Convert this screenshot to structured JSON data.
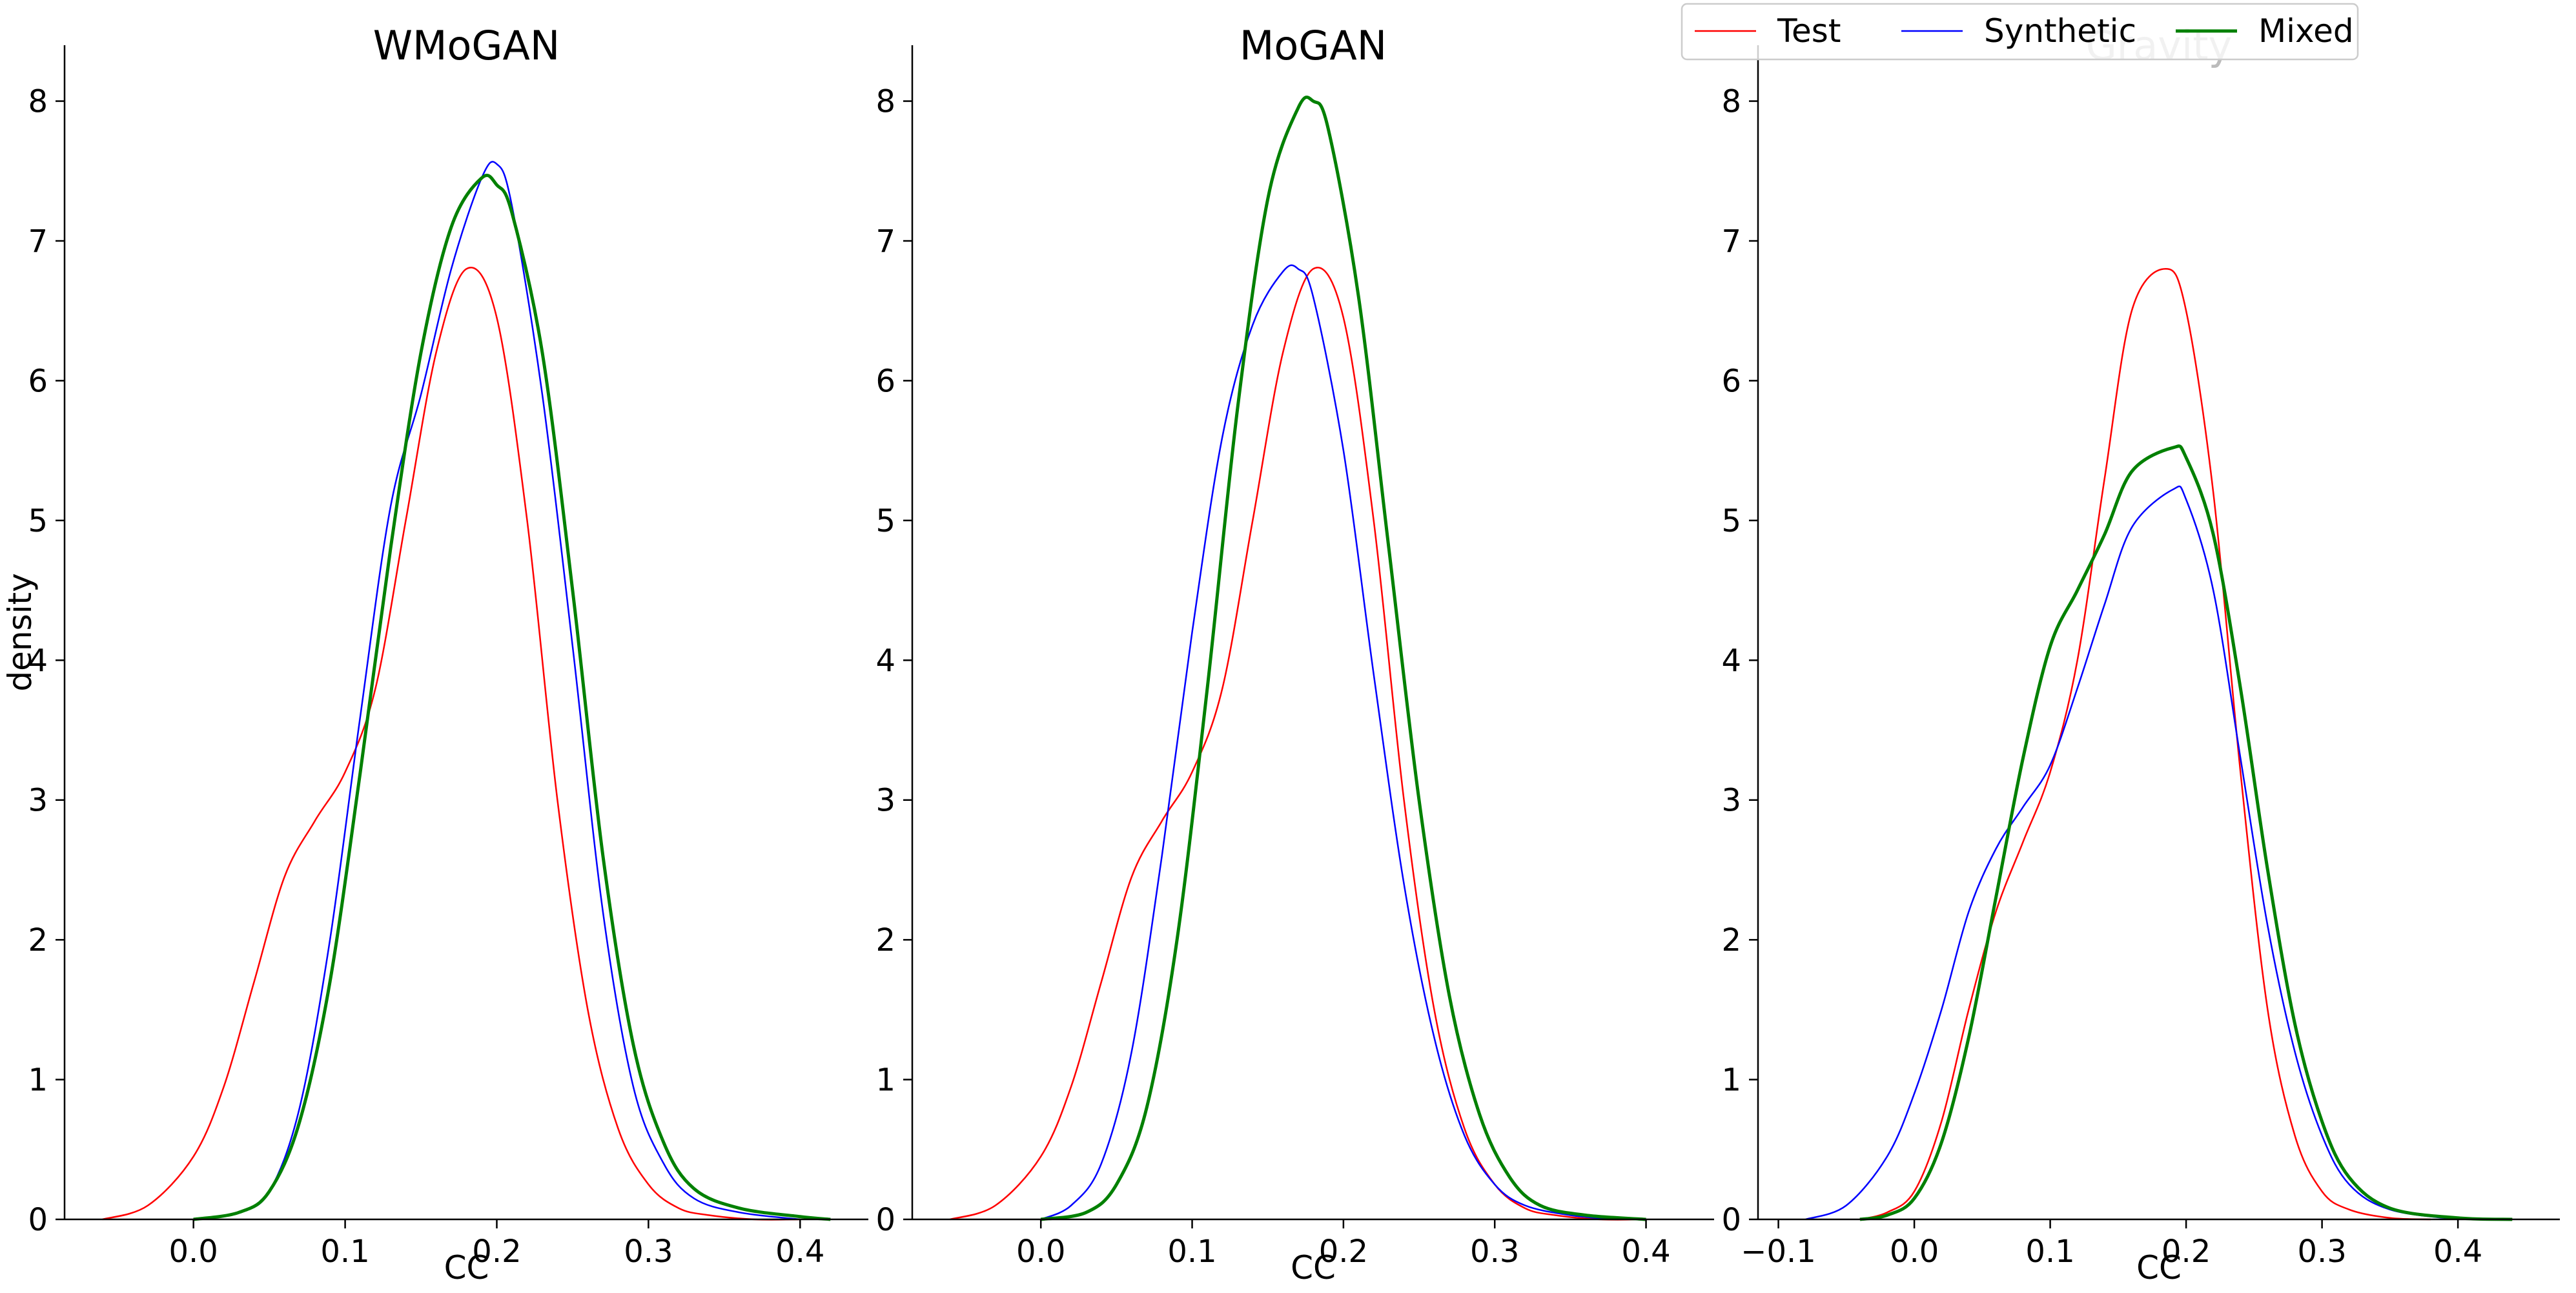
{
  "colors": {
    "test": "#ff0000",
    "synthetic": "#0000ff",
    "mixed": "#008000",
    "axis": "#000000",
    "legend_border": "#cccccc",
    "faded_title": "#bbbbbb"
  },
  "legend": {
    "placement": "top-right",
    "items": [
      {
        "name": "Test",
        "color": "#ff0000",
        "style": "thin"
      },
      {
        "name": "Synthetic",
        "color": "#0000ff",
        "style": "thin"
      },
      {
        "name": "Mixed",
        "color": "#008000",
        "style": "thick"
      }
    ]
  },
  "chart_data": [
    {
      "type": "line",
      "title": "WMoGAN",
      "xlabel": "CC",
      "ylabel": "density",
      "xlim": [
        -0.085,
        0.445
      ],
      "ylim": [
        0,
        8.4
      ],
      "xticks": [
        0.0,
        0.1,
        0.2,
        0.3,
        0.4
      ],
      "xtick_labels": [
        "0.0",
        "0.1",
        "0.2",
        "0.3",
        "0.4"
      ],
      "yticks": [
        0,
        1,
        2,
        3,
        4,
        5,
        6,
        7,
        8
      ],
      "ytick_labels": [
        "0",
        "1",
        "2",
        "3",
        "4",
        "5",
        "6",
        "7",
        "8"
      ],
      "grid": false,
      "series": [
        {
          "name": "Test",
          "x": [
            -0.06,
            -0.03,
            0.0,
            0.02,
            0.04,
            0.06,
            0.08,
            0.1,
            0.12,
            0.14,
            0.16,
            0.18,
            0.2,
            0.22,
            0.24,
            0.26,
            0.28,
            0.3,
            0.32,
            0.34,
            0.37,
            0.4
          ],
          "values": [
            0.0,
            0.1,
            0.45,
            0.95,
            1.7,
            2.45,
            2.85,
            3.2,
            3.8,
            5.0,
            6.2,
            6.8,
            6.45,
            5.0,
            3.0,
            1.5,
            0.65,
            0.25,
            0.08,
            0.03,
            0.0,
            0.0
          ]
        },
        {
          "name": "Synthetic",
          "x": [
            0.0,
            0.03,
            0.05,
            0.07,
            0.09,
            0.11,
            0.13,
            0.15,
            0.17,
            0.19,
            0.2,
            0.21,
            0.23,
            0.25,
            0.27,
            0.29,
            0.31,
            0.33,
            0.36,
            0.4
          ],
          "values": [
            0.0,
            0.05,
            0.2,
            0.8,
            2.0,
            3.6,
            5.1,
            5.9,
            6.8,
            7.45,
            7.55,
            7.25,
            5.9,
            4.1,
            2.2,
            0.95,
            0.4,
            0.15,
            0.05,
            0.0
          ]
        },
        {
          "name": "Mixed",
          "x": [
            0.0,
            0.03,
            0.05,
            0.07,
            0.09,
            0.11,
            0.13,
            0.15,
            0.17,
            0.19,
            0.2,
            0.21,
            0.23,
            0.25,
            0.27,
            0.29,
            0.31,
            0.33,
            0.36,
            0.4,
            0.42
          ],
          "values": [
            0.0,
            0.05,
            0.2,
            0.7,
            1.7,
            3.2,
            4.8,
            6.2,
            7.1,
            7.45,
            7.4,
            7.2,
            6.2,
            4.5,
            2.6,
            1.25,
            0.55,
            0.22,
            0.08,
            0.02,
            0.0
          ]
        }
      ]
    },
    {
      "type": "line",
      "title": "MoGAN",
      "xlabel": "CC",
      "ylabel": "",
      "xlim": [
        -0.085,
        0.445
      ],
      "ylim": [
        0,
        8.4
      ],
      "xticks": [
        0.0,
        0.1,
        0.2,
        0.3,
        0.4
      ],
      "xtick_labels": [
        "0.0",
        "0.1",
        "0.2",
        "0.3",
        "0.4"
      ],
      "yticks": [
        0,
        1,
        2,
        3,
        4,
        5,
        6,
        7,
        8
      ],
      "ytick_labels": [
        "0",
        "1",
        "2",
        "3",
        "4",
        "5",
        "6",
        "7",
        "8"
      ],
      "grid": false,
      "series": [
        {
          "name": "Test",
          "x": [
            -0.06,
            -0.03,
            0.0,
            0.02,
            0.04,
            0.06,
            0.08,
            0.1,
            0.12,
            0.14,
            0.16,
            0.18,
            0.2,
            0.22,
            0.24,
            0.26,
            0.28,
            0.3,
            0.32,
            0.34,
            0.37,
            0.4
          ],
          "values": [
            0.0,
            0.1,
            0.45,
            0.95,
            1.7,
            2.45,
            2.85,
            3.2,
            3.8,
            5.0,
            6.2,
            6.8,
            6.45,
            5.0,
            3.0,
            1.5,
            0.65,
            0.25,
            0.08,
            0.03,
            0.0,
            0.0
          ]
        },
        {
          "name": "Synthetic",
          "x": [
            0.0,
            0.02,
            0.04,
            0.06,
            0.08,
            0.1,
            0.12,
            0.14,
            0.16,
            0.17,
            0.18,
            0.2,
            0.22,
            0.24,
            0.26,
            0.28,
            0.3,
            0.32,
            0.35,
            0.38
          ],
          "values": [
            0.0,
            0.1,
            0.4,
            1.2,
            2.6,
            4.2,
            5.6,
            6.4,
            6.78,
            6.8,
            6.6,
            5.5,
            3.9,
            2.4,
            1.3,
            0.6,
            0.25,
            0.1,
            0.03,
            0.0
          ]
        },
        {
          "name": "Mixed",
          "x": [
            0.0,
            0.03,
            0.05,
            0.07,
            0.09,
            0.11,
            0.13,
            0.15,
            0.17,
            0.18,
            0.19,
            0.21,
            0.23,
            0.25,
            0.27,
            0.29,
            0.31,
            0.33,
            0.36,
            0.4
          ],
          "values": [
            0.0,
            0.05,
            0.25,
            0.8,
            2.0,
            3.8,
            5.8,
            7.3,
            7.95,
            8.0,
            7.8,
            6.6,
            4.8,
            3.0,
            1.6,
            0.75,
            0.3,
            0.1,
            0.03,
            0.0
          ]
        }
      ]
    },
    {
      "type": "line",
      "title": "Gravity",
      "xlabel": "CC",
      "ylabel": "",
      "xlim": [
        -0.115,
        0.475
      ],
      "ylim": [
        0,
        8.4
      ],
      "xticks": [
        -0.1,
        0.0,
        0.1,
        0.2,
        0.3,
        0.4
      ],
      "xtick_labels": [
        "−0.1",
        "0.0",
        "0.1",
        "0.2",
        "0.3",
        "0.4"
      ],
      "yticks": [
        0,
        1,
        2,
        3,
        4,
        5,
        6,
        7,
        8
      ],
      "ytick_labels": [
        "0",
        "1",
        "2",
        "3",
        "4",
        "5",
        "6",
        "7",
        "8"
      ],
      "grid": false,
      "series": [
        {
          "name": "Test",
          "x": [
            -0.04,
            -0.02,
            0.0,
            0.02,
            0.04,
            0.06,
            0.08,
            0.1,
            0.12,
            0.14,
            0.16,
            0.185,
            0.2,
            0.22,
            0.24,
            0.26,
            0.28,
            0.3,
            0.32,
            0.35,
            0.38
          ],
          "values": [
            0.0,
            0.05,
            0.2,
            0.7,
            1.5,
            2.2,
            2.7,
            3.2,
            4.0,
            5.3,
            6.5,
            6.8,
            6.5,
            5.2,
            3.2,
            1.5,
            0.6,
            0.2,
            0.07,
            0.01,
            0.0
          ]
        },
        {
          "name": "Synthetic",
          "x": [
            -0.08,
            -0.05,
            -0.02,
            0.0,
            0.02,
            0.04,
            0.06,
            0.08,
            0.1,
            0.12,
            0.14,
            0.16,
            0.19,
            0.2,
            0.22,
            0.24,
            0.26,
            0.28,
            0.3,
            0.32,
            0.35,
            0.4
          ],
          "values": [
            0.0,
            0.1,
            0.45,
            0.9,
            1.5,
            2.2,
            2.65,
            2.95,
            3.25,
            3.8,
            4.4,
            4.95,
            5.22,
            5.15,
            4.5,
            3.3,
            2.1,
            1.2,
            0.6,
            0.25,
            0.07,
            0.0
          ]
        },
        {
          "name": "Mixed",
          "x": [
            -0.04,
            -0.02,
            0.0,
            0.02,
            0.04,
            0.06,
            0.08,
            0.1,
            0.12,
            0.14,
            0.16,
            0.19,
            0.2,
            0.22,
            0.24,
            0.26,
            0.28,
            0.3,
            0.32,
            0.35,
            0.4,
            0.44
          ],
          "values": [
            0.0,
            0.03,
            0.15,
            0.55,
            1.3,
            2.3,
            3.3,
            4.1,
            4.5,
            4.9,
            5.35,
            5.52,
            5.45,
            4.9,
            3.8,
            2.5,
            1.4,
            0.7,
            0.3,
            0.08,
            0.01,
            0.0
          ]
        }
      ]
    }
  ]
}
